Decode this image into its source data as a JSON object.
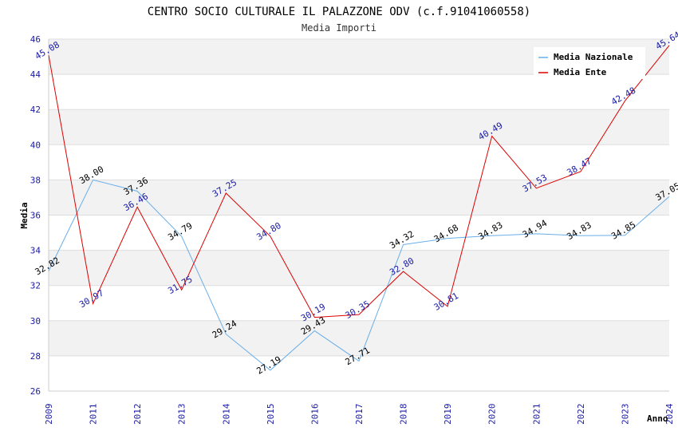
{
  "chart_data": {
    "type": "line",
    "title": "CENTRO SOCIO CULTURALE IL PALAZZONE ODV (c.f.91041060558)",
    "subtitle": "Media Importi",
    "xlabel": "Anno",
    "ylabel": "Media",
    "ylim": [
      26,
      46
    ],
    "yticks": [
      26,
      28,
      30,
      32,
      34,
      36,
      38,
      40,
      42,
      44,
      46
    ],
    "categories": [
      "2009",
      "2011",
      "2012",
      "2013",
      "2014",
      "2015",
      "2016",
      "2017",
      "2018",
      "2019",
      "2020",
      "2021",
      "2022",
      "2023",
      "2024"
    ],
    "legend_position": "top-right",
    "series": [
      {
        "name": "Media Nazionale",
        "color": "#6aaee8",
        "label_color": "#000000",
        "values": [
          32.82,
          38.0,
          37.36,
          34.79,
          29.24,
          27.19,
          29.43,
          27.71,
          34.32,
          34.68,
          34.83,
          34.94,
          34.83,
          34.85,
          37.05
        ],
        "labels": [
          "32.82",
          "38.00",
          "37.36",
          "34.79",
          "29.24",
          "27.19",
          "29.43",
          "27.71",
          "34.32",
          "34.68",
          "34.83",
          "34.94",
          "34.83",
          "34.85",
          "37.05"
        ]
      },
      {
        "name": "Media Ente",
        "color": "#dd0000",
        "label_color": "#1a1aa6",
        "values": [
          45.08,
          30.97,
          36.46,
          31.75,
          37.25,
          34.8,
          30.19,
          30.35,
          32.8,
          30.81,
          40.49,
          37.53,
          38.47,
          42.48,
          45.64
        ],
        "labels": [
          "45.08",
          "30.97",
          "36.46",
          "31.75",
          "37.25",
          "34.80",
          "30.19",
          "30.35",
          "32.80",
          "30.81",
          "40.49",
          "37.53",
          "38.47",
          "42.48",
          "45.64"
        ]
      }
    ]
  }
}
